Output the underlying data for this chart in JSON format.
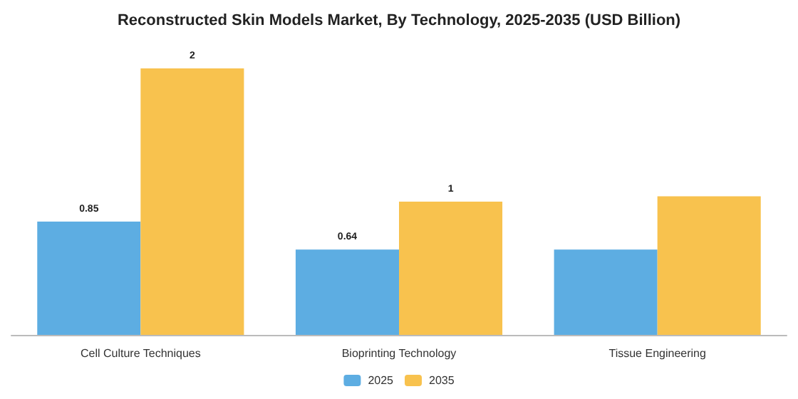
{
  "chart_data": {
    "type": "bar",
    "title": "Reconstructed Skin Models Market, By Technology, 2025-2035 (USD Billion)",
    "categories": [
      "Cell Culture Techniques",
      "Bioprinting Technology",
      "Tissue Engineering"
    ],
    "legend": "bottom",
    "tick_labels": "x",
    "series": [
      {
        "name": "2025",
        "color": "#5dade2",
        "values": [
          0.85,
          0.64,
          0.64
        ],
        "value_labels": [
          "0.85",
          "0.64",
          null
        ]
      },
      {
        "name": "2035",
        "color": "#f8c24e",
        "values": [
          2,
          1,
          1.04
        ],
        "value_labels": [
          "2",
          "1",
          null
        ]
      }
    ]
  }
}
